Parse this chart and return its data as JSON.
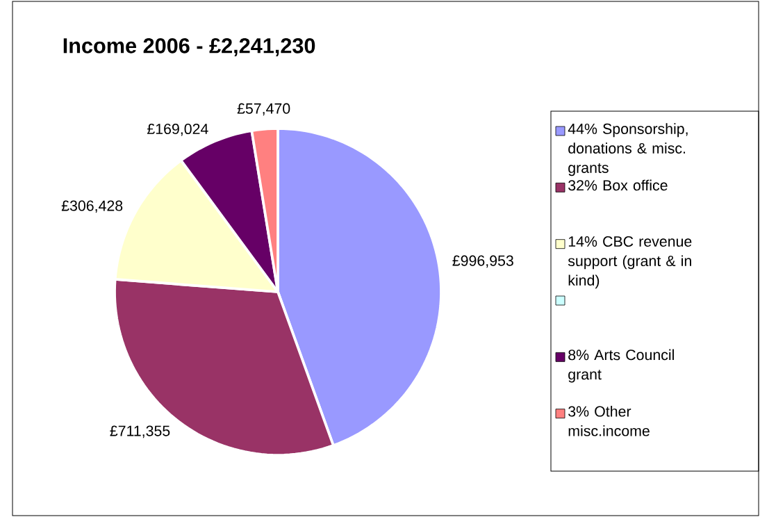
{
  "chart_data": {
    "type": "pie",
    "title": "Income 2006 - £2,241,230",
    "categories": [
      "44% Sponsorship, donations & misc. grants",
      "32% Box office",
      "14% CBC revenue support (grant & in kind)",
      null,
      "8% Arts Council grant",
      "3% Other misc.income"
    ],
    "values": [
      996953,
      711355,
      306428,
      0,
      169024,
      57470
    ],
    "colors": [
      "#9999ff",
      "#993366",
      "#ffffcc",
      "#ccffff",
      "#660066",
      "#ff8080"
    ],
    "value_labels": [
      "£996,953",
      "£711,355",
      "£306,428",
      null,
      "£169,024",
      "£57,470"
    ],
    "legend": "right"
  }
}
